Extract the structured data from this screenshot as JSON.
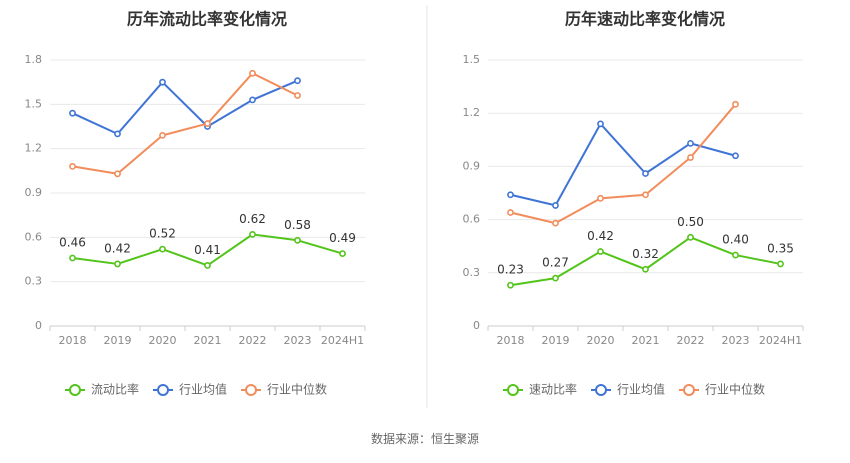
{
  "source": "数据来源：恒生聚源",
  "colors": {
    "company": "#52c41a",
    "industry_avg": "#3f74d6",
    "industry_median": "#f28c5b",
    "grid": "#e8e8e8",
    "axis": "#cccccc",
    "divider": "#e6e6e6"
  },
  "chart_data": [
    {
      "type": "line",
      "title": "历年流动比率变化情况",
      "categories": [
        "2018",
        "2019",
        "2020",
        "2021",
        "2022",
        "2023",
        "2024H1"
      ],
      "ylim": [
        0,
        1.8
      ],
      "yticks": [
        0,
        0.3,
        0.6,
        0.9,
        1.2,
        1.5,
        1.8
      ],
      "ytick_labels": [
        "0",
        "0.3",
        "0.6",
        "0.9",
        "1.2",
        "1.5",
        "1.8"
      ],
      "grid": true,
      "legend": "bottom",
      "series": [
        {
          "name": "流动比率",
          "role": "company",
          "values": [
            0.46,
            0.42,
            0.52,
            0.41,
            0.62,
            0.58,
            0.49
          ],
          "labels": [
            "0.46",
            "0.42",
            "0.52",
            "0.41",
            "0.62",
            "0.58",
            "0.49"
          ]
        },
        {
          "name": "行业均值",
          "role": "industry_avg",
          "values": [
            1.44,
            1.3,
            1.65,
            1.35,
            1.53,
            1.66,
            null
          ]
        },
        {
          "name": "行业中位数",
          "role": "industry_median",
          "values": [
            1.08,
            1.03,
            1.29,
            1.37,
            1.71,
            1.56,
            null
          ]
        }
      ]
    },
    {
      "type": "line",
      "title": "历年速动比率变化情况",
      "categories": [
        "2018",
        "2019",
        "2020",
        "2021",
        "2022",
        "2023",
        "2024H1"
      ],
      "ylim": [
        0,
        1.5
      ],
      "yticks": [
        0,
        0.3,
        0.6,
        0.9,
        1.2,
        1.5
      ],
      "ytick_labels": [
        "0",
        "0.3",
        "0.6",
        "0.9",
        "1.2",
        "1.5"
      ],
      "grid": true,
      "legend": "bottom",
      "series": [
        {
          "name": "速动比率",
          "role": "company",
          "values": [
            0.23,
            0.27,
            0.42,
            0.32,
            0.5,
            0.4,
            0.35
          ],
          "labels": [
            "0.23",
            "0.27",
            "0.42",
            "0.32",
            "0.50",
            "0.40",
            "0.35"
          ]
        },
        {
          "name": "行业均值",
          "role": "industry_avg",
          "values": [
            0.74,
            0.68,
            1.14,
            0.86,
            1.03,
            0.96,
            null
          ]
        },
        {
          "name": "行业中位数",
          "role": "industry_median",
          "values": [
            0.64,
            0.58,
            0.72,
            0.74,
            0.95,
            1.25,
            null
          ]
        }
      ]
    }
  ]
}
